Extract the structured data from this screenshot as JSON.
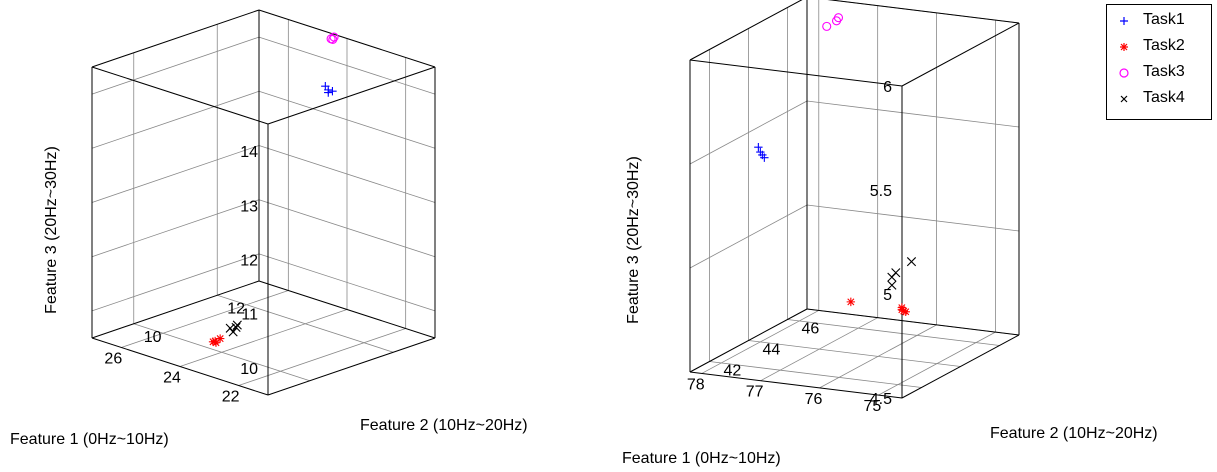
{
  "colors": {
    "Task1": "#0000ff",
    "Task2": "#ff0000",
    "Task3": "#ff00ff",
    "Task4": "#000000"
  },
  "legend": {
    "placement": "top-right",
    "items": [
      {
        "label": "Task1",
        "marker": "+",
        "color": "#0000ff"
      },
      {
        "label": "Task2",
        "marker": "*",
        "color": "#ff0000"
      },
      {
        "label": "Task3",
        "marker": "o",
        "color": "#ff00ff"
      },
      {
        "label": "Task4",
        "marker": "x",
        "color": "#000000"
      }
    ]
  },
  "chart_data": [
    {
      "type": "scatter",
      "projection": "3d",
      "xlabel": "Feature 1 (0Hz~10Hz)",
      "ylabel": "Feature 2 (10Hz~20Hz)",
      "zlabel": "Feature 3 (20Hz~30Hz)",
      "xlim": [
        21,
        27
      ],
      "ylim": [
        9,
        13
      ],
      "zlim": [
        9.5,
        14.5
      ],
      "xticks": [
        "22",
        "24",
        "26"
      ],
      "yticks": [
        "10",
        "12"
      ],
      "zticks": [
        "10",
        "11",
        "12",
        "13",
        "14"
      ],
      "grid": true,
      "series": [
        {
          "name": "Task1",
          "marker": "+",
          "color": "#0000ff",
          "points": [
            [
              23.5,
              12.2,
              13.8
            ],
            [
              23.5,
              12.3,
              13.8
            ],
            [
              23.6,
              12.2,
              13.9
            ],
            [
              23.5,
              12.2,
              13.85
            ]
          ]
        },
        {
          "name": "Task2",
          "marker": "*",
          "color": "#ff0000",
          "points": [
            [
              23.2,
              9.3,
              10.0
            ],
            [
              23.3,
              9.3,
              10.0
            ],
            [
              23.2,
              9.4,
              10.05
            ],
            [
              23.3,
              9.35,
              10.0
            ]
          ]
        },
        {
          "name": "Task3",
          "marker": "o",
          "color": "#ff00ff",
          "points": [
            [
              24.2,
              12.8,
              14.5
            ],
            [
              24.3,
              12.9,
              14.5
            ],
            [
              24.4,
              12.9,
              14.45
            ]
          ]
        },
        {
          "name": "Task4",
          "marker": "x",
          "color": "#000000",
          "points": [
            [
              22.9,
              9.5,
              10.2
            ],
            [
              22.8,
              9.5,
              10.3
            ],
            [
              22.9,
              9.6,
              10.3
            ],
            [
              23.0,
              9.5,
              10.25
            ]
          ]
        }
      ]
    },
    {
      "type": "scatter",
      "projection": "3d",
      "xlabel": "Feature 1 (0Hz~10Hz)",
      "ylabel": "Feature 2 (10Hz~20Hz)",
      "zlabel": "Feature 3 (20Hz~30Hz)",
      "xlim": [
        74.6,
        78.2
      ],
      "ylim": [
        41,
        47
      ],
      "zlim": [
        4.5,
        6
      ],
      "xticks": [
        "75",
        "76",
        "77",
        "78"
      ],
      "yticks": [
        "42",
        "44",
        "46"
      ],
      "zticks": [
        "4.5",
        "5",
        "5.5",
        "6"
      ],
      "grid": true,
      "series": [
        {
          "name": "Task1",
          "marker": "+",
          "color": "#0000ff",
          "points": [
            [
              77.6,
              43.0,
              5.45
            ],
            [
              77.7,
              43.2,
              5.45
            ],
            [
              77.8,
              43.4,
              5.45
            ],
            [
              77.9,
              43.6,
              5.46
            ]
          ]
        },
        {
          "name": "Task2",
          "marker": "*",
          "color": "#ff0000",
          "points": [
            [
              75.0,
              42.2,
              4.86
            ],
            [
              75.0,
              42.4,
              4.83
            ],
            [
              75.1,
              42.6,
              4.82
            ],
            [
              75.8,
              42.0,
              4.87
            ],
            [
              75.0,
              42.2,
              4.85
            ]
          ]
        },
        {
          "name": "Task3",
          "marker": "o",
          "color": "#ff00ff",
          "points": [
            [
              77.5,
              46.5,
              5.95
            ],
            [
              77.5,
              46.4,
              5.94
            ],
            [
              77.6,
              46.2,
              5.92
            ]
          ]
        },
        {
          "name": "Task4",
          "marker": "x",
          "color": "#000000",
          "points": [
            [
              75.3,
              43.6,
              5.0
            ],
            [
              75.5,
              43.4,
              4.95
            ],
            [
              75.6,
              43.5,
              4.92
            ],
            [
              75.5,
              43.2,
              4.9
            ]
          ]
        }
      ]
    }
  ]
}
